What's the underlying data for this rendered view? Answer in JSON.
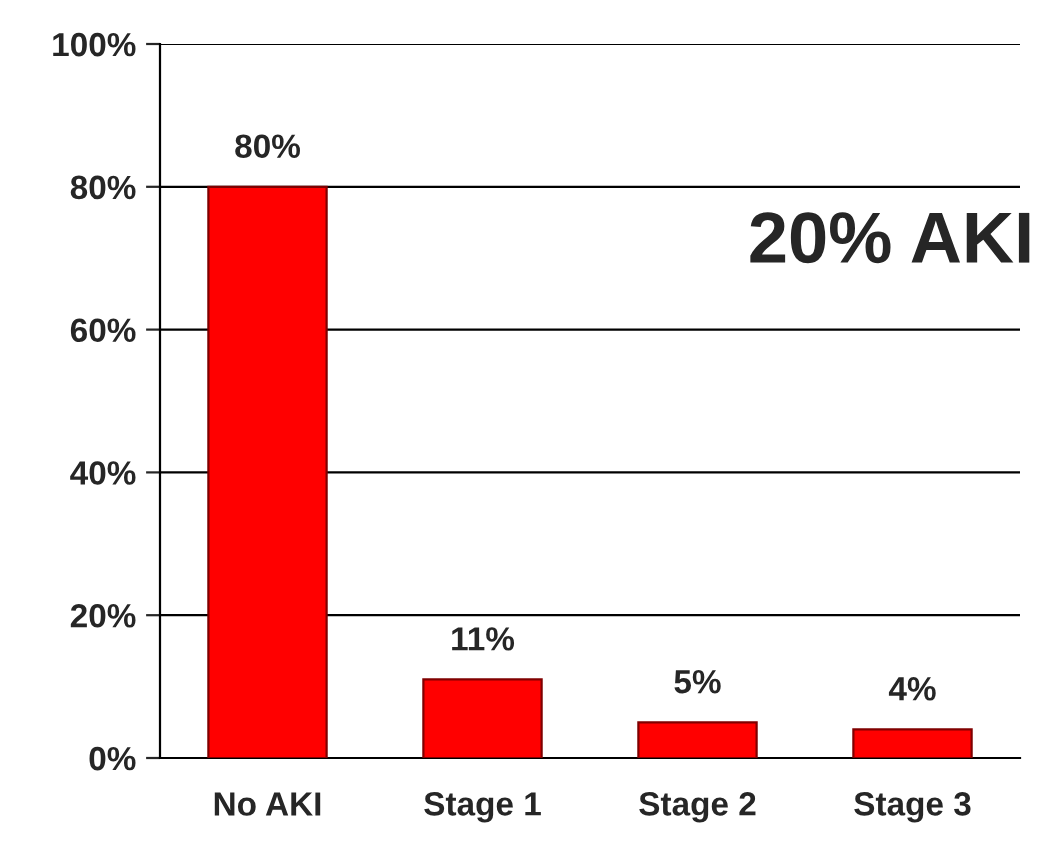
{
  "chart_data": {
    "type": "bar",
    "categories": [
      "No AKI",
      "Stage 1",
      "Stage 2",
      "Stage 3"
    ],
    "values": [
      80,
      11,
      5,
      4
    ],
    "value_labels": [
      "80%",
      "11%",
      "5%",
      "4%"
    ],
    "color": "#ff0000",
    "ylim": [
      0,
      100
    ],
    "yticks": [
      {
        "value": 0,
        "label": "0%"
      },
      {
        "value": 20,
        "label": "20%"
      },
      {
        "value": 40,
        "label": "40%"
      },
      {
        "value": 60,
        "label": "60%"
      },
      {
        "value": 80,
        "label": "80%"
      },
      {
        "value": 100,
        "label": "100%"
      }
    ],
    "grid": "y",
    "annotations": [
      "20% AKI"
    ]
  }
}
